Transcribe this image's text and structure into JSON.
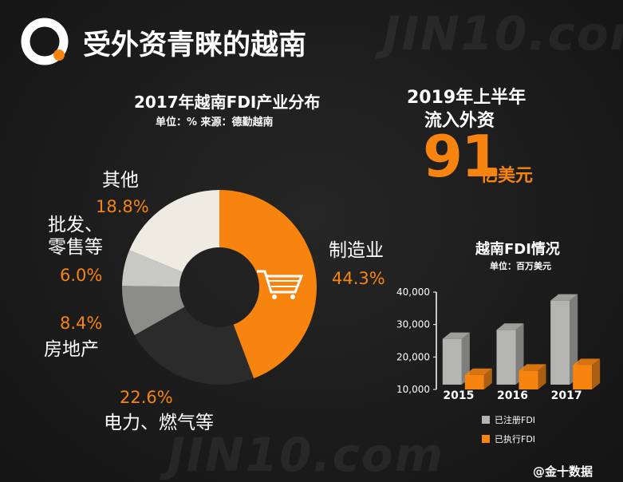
{
  "header": {
    "title": "受外资青睐的越南"
  },
  "highlight": {
    "line1": "2019年上半年",
    "line2": "流入外资",
    "number": "91",
    "unit": "亿美元"
  },
  "footer": {
    "credit": "@金十数据"
  },
  "watermark": "JIN10.com",
  "chart_data": [
    {
      "type": "donut",
      "title": "2017年越南FDI产业分布",
      "subtitle": "单位：% 来源：德勤越南",
      "categories": [
        "制造业",
        "电力、燃气等",
        "房地产",
        "批发、零售等",
        "其他"
      ],
      "values": [
        44.3,
        22.6,
        8.4,
        6.0,
        18.8
      ],
      "value_labels": [
        "44.3%",
        "22.6%",
        "8.4%",
        "6.0%",
        "18.8%"
      ],
      "colors": [
        "#f7840f",
        "#2b2b2b",
        "#8c8c88",
        "#c9c9c3",
        "#eeebe2"
      ]
    },
    {
      "type": "bar3d",
      "title": "越南FDI情况",
      "subtitle": "单位：百万美元",
      "categories": [
        "2015",
        "2016",
        "2017"
      ],
      "series": [
        {
          "name": "已注册FDI",
          "color": "#b4b4b0",
          "values": [
            24100,
            26900,
            35900
          ]
        },
        {
          "name": "已执行FDI",
          "color": "#f7840f",
          "values": [
            14500,
            15800,
            17500
          ]
        }
      ],
      "ylim": [
        10000,
        40000
      ],
      "yticks": [
        {
          "value": 10000,
          "label": "10,000"
        },
        {
          "value": 20000,
          "label": "20,000"
        },
        {
          "value": 30000,
          "label": "30,000"
        },
        {
          "value": 40000,
          "label": "40,000"
        }
      ]
    }
  ]
}
